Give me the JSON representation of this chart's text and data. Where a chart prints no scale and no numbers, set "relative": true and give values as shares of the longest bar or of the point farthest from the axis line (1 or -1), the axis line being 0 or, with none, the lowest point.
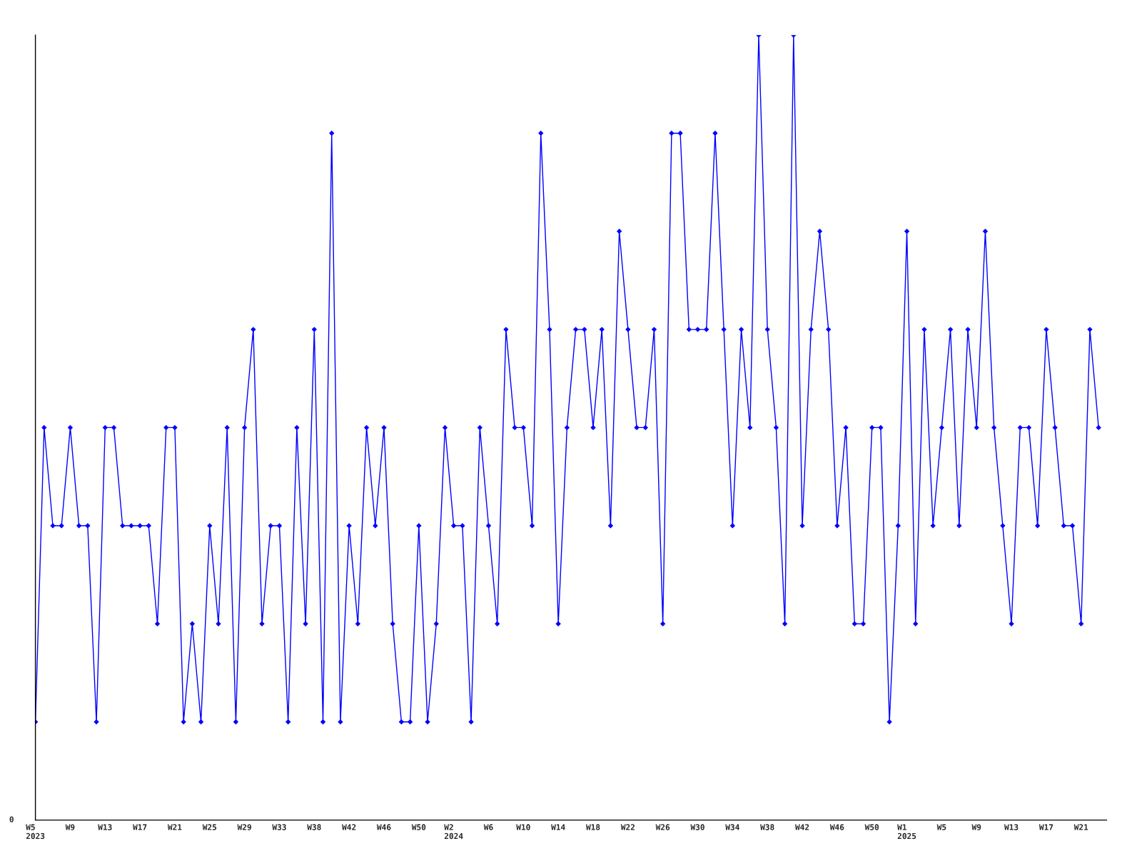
{
  "chart_data": {
    "type": "line",
    "relative": true,
    "annotations": [
      "0"
    ],
    "marker": "diamond",
    "line_style": "solid",
    "grid": false,
    "legend": false,
    "categories": [
      "W5\n2023",
      null,
      null,
      null,
      "W9",
      null,
      null,
      null,
      "W13",
      null,
      null,
      null,
      "W17",
      null,
      null,
      null,
      "W21",
      null,
      null,
      null,
      "W25",
      null,
      null,
      null,
      "W29",
      null,
      null,
      null,
      "W33",
      null,
      null,
      null,
      "W38",
      null,
      null,
      null,
      "W42",
      null,
      null,
      null,
      "W46",
      null,
      null,
      null,
      "W50",
      null,
      null,
      null,
      "W2\n2024",
      null,
      null,
      null,
      "W6",
      null,
      null,
      null,
      "W10",
      null,
      null,
      null,
      "W14",
      null,
      null,
      null,
      "W18",
      null,
      null,
      null,
      "W22",
      null,
      null,
      null,
      "W26",
      null,
      null,
      null,
      "W30",
      null,
      null,
      null,
      "W34",
      null,
      null,
      null,
      "W38",
      null,
      null,
      null,
      "W42",
      null,
      null,
      null,
      "W46",
      null,
      null,
      null,
      "W50",
      null,
      null,
      null,
      "W1\n2025",
      null,
      null,
      null,
      "W5",
      null,
      null,
      null,
      "W9",
      null,
      null,
      null,
      "W13",
      null,
      null,
      null,
      "W17",
      null,
      null,
      null,
      "W21",
      null,
      null
    ],
    "series": [
      {
        "color": "#0000ff",
        "values": [
          0.125,
          0.5,
          0.375,
          0.375,
          0.5,
          0.375,
          0.375,
          0.125,
          0.5,
          0.5,
          0.375,
          0.375,
          0.375,
          0.375,
          0.25,
          0.5,
          0.5,
          0.125,
          0.25,
          0.125,
          0.375,
          0.25,
          0.5,
          0.125,
          0.5,
          0.625,
          0.25,
          0.375,
          0.375,
          0.125,
          0.5,
          0.25,
          0.625,
          0.125,
          0.875,
          0.125,
          0.375,
          0.25,
          0.5,
          0.375,
          0.5,
          0.25,
          0.125,
          0.125,
          0.375,
          0.125,
          0.25,
          0.5,
          0.375,
          0.375,
          0.125,
          0.5,
          0.375,
          0.25,
          0.625,
          0.5,
          0.5,
          0.375,
          0.875,
          0.625,
          0.25,
          0.5,
          0.625,
          0.625,
          0.5,
          0.625,
          0.375,
          0.75,
          0.625,
          0.5,
          0.5,
          0.625,
          0.25,
          0.875,
          0.875,
          0.625,
          0.625,
          0.625,
          0.875,
          0.625,
          0.375,
          0.625,
          0.5,
          1,
          0.625,
          0.5,
          0.25,
          1,
          0.375,
          0.625,
          0.75,
          0.625,
          0.375,
          0.5,
          0.25,
          0.25,
          0.5,
          0.5,
          0.125,
          0.375,
          0.75,
          0.25,
          0.625,
          0.375,
          0.5,
          0.625,
          0.375,
          0.625,
          0.5,
          0.75,
          0.5,
          0.375,
          0.25,
          0.5,
          0.5,
          0.375,
          0.625,
          0.5,
          0.375,
          0.375,
          0.25,
          0.625,
          0.5
        ]
      }
    ]
  }
}
